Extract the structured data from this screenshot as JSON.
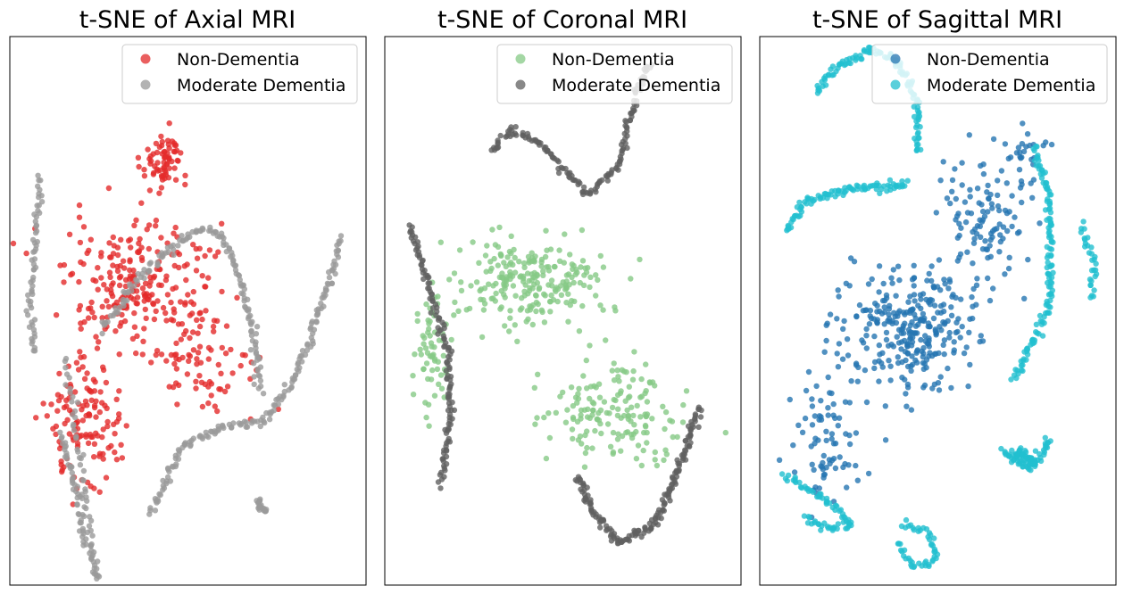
{
  "figure": {
    "background": "#ffffff"
  },
  "chart_data": [
    {
      "type": "scatter",
      "title": "t-SNE of Axial MRI",
      "xlabel": "",
      "ylabel": "",
      "grid": false,
      "ticks": false,
      "legend_position": "top-right",
      "series": [
        {
          "name": "Non-Dementia",
          "color": "#e32a2a",
          "kind": "cloud",
          "clusters": [
            {
              "center": [
                -5,
                24
              ],
              "spread": [
                4,
                5
              ],
              "count": 70
            },
            {
              "center": [
                -9,
                3
              ],
              "spread": [
                13,
                10
              ],
              "count": 250
            },
            {
              "center": [
                -20,
                -18
              ],
              "spread": [
                7,
                10
              ],
              "count": 130
            },
            {
              "center": [
                3,
                -10
              ],
              "spread": [
                10,
                6
              ],
              "count": 60
            }
          ]
        },
        {
          "name": "Moderate Dementia",
          "color": "#9a9a9a",
          "kind": "curves",
          "curves": [
            {
              "points": [
                [
                  -29,
                  22
                ],
                [
                  -30,
                  12
                ],
                [
                  -31,
                  0
                ],
                [
                  -30,
                  -7
                ]
              ],
              "count": 60
            },
            {
              "points": [
                [
                  -25,
                  -20
                ],
                [
                  -22,
                  -30
                ],
                [
                  -20,
                  -38
                ],
                [
                  -18,
                  -44
                ]
              ],
              "count": 60
            },
            {
              "points": [
                [
                  -24,
                  -8
                ],
                [
                  -22,
                  -20
                ],
                [
                  -20,
                  -32
                ],
                [
                  -18,
                  -44
                ]
              ],
              "count": 50
            },
            {
              "points": [
                [
                  -17,
                  -3
                ],
                [
                  -9,
                  6
                ],
                [
                  1,
                  13
                ],
                [
                  6,
                  13
                ],
                [
                  10,
                  6
                ],
                [
                  13,
                  -4
                ],
                [
                  14,
                  -13
                ]
              ],
              "count": 150
            },
            {
              "points": [
                [
                  -7,
                  -33
                ],
                [
                  -1,
                  -22
                ],
                [
                  8,
                  -19
                ],
                [
                  15,
                  -18
                ],
                [
                  21,
                  -11
                ],
                [
                  28,
                  5
                ],
                [
                  30,
                  12
                ]
              ],
              "count": 170
            },
            {
              "points": [
                [
                  14,
                  -31
                ],
                [
                  15,
                  -33
                ]
              ],
              "count": 20
            }
          ]
        }
      ],
      "xlim": [
        -35,
        35
      ],
      "ylim": [
        -45,
        45
      ]
    },
    {
      "type": "scatter",
      "title": "t-SNE of Coronal MRI",
      "xlabel": "",
      "ylabel": "",
      "grid": false,
      "ticks": false,
      "legend_position": "top-right",
      "series": [
        {
          "name": "Non-Dementia",
          "color": "#86c986",
          "kind": "cloud",
          "clusters": [
            {
              "center": [
                -7,
                5
              ],
              "spread": [
                13,
                7
              ],
              "count": 230
            },
            {
              "center": [
                10,
                -16
              ],
              "spread": [
                12,
                8
              ],
              "count": 160
            },
            {
              "center": [
                -26,
                -8
              ],
              "spread": [
                3,
                11
              ],
              "count": 60
            }
          ]
        },
        {
          "name": "Moderate Dementia",
          "color": "#606060",
          "kind": "curves",
          "curves": [
            {
              "points": [
                [
                  -30,
                  14
                ],
                [
                  -26,
                  3
                ],
                [
                  -23,
                  -5
                ],
                [
                  -22,
                  -17
                ],
                [
                  -24,
                  -28
                ]
              ],
              "count": 130
            },
            {
              "points": [
                [
                  -14,
                  26
                ],
                [
                  -10,
                  30
                ],
                [
                  -4,
                  27
                ],
                [
                  5,
                  19
                ],
                [
                  11,
                  24
                ],
                [
                  14,
                  34
                ],
                [
                  17,
                  41
                ]
              ],
              "count": 150
            },
            {
              "points": [
                [
                  3,
                  -27
                ],
                [
                  6,
                  -33
                ],
                [
                  11,
                  -38
                ],
                [
                  18,
                  -35
                ],
                [
                  24,
                  -23
                ],
                [
                  27,
                  -16
                ]
              ],
              "count": 170
            }
          ]
        }
      ],
      "xlim": [
        -35,
        35
      ],
      "ylim": [
        -45,
        45
      ]
    },
    {
      "type": "scatter",
      "title": "t-SNE of Sagittal MRI",
      "xlabel": "",
      "ylabel": "",
      "grid": false,
      "ticks": false,
      "legend_position": "top-right",
      "series": [
        {
          "name": "Non-Dementia",
          "color": "#2675b2",
          "kind": "cloud",
          "clusters": [
            {
              "center": [
                -5,
                -3
              ],
              "spread": [
                12,
                9
              ],
              "count": 300
            },
            {
              "center": [
                -22,
                -21
              ],
              "spread": [
                7,
                10
              ],
              "count": 80
            },
            {
              "center": [
                10,
                16
              ],
              "spread": [
                9,
                9
              ],
              "count": 110
            },
            {
              "center": [
                18,
                26
              ],
              "spread": [
                4,
                4
              ],
              "count": 20
            }
          ]
        },
        {
          "name": "Moderate Dementia",
          "color": "#22bfcf",
          "kind": "curves",
          "curves": [
            {
              "points": [
                [
                  -24,
                  36
                ],
                [
                  -20,
                  40
                ],
                [
                  -13,
                  43
                ],
                [
                  -8,
                  41
                ],
                [
                  -4,
                  34
                ],
                [
                  -4,
                  26
                ]
              ],
              "count": 110
            },
            {
              "points": [
                [
                  -30,
                  13
                ],
                [
                  -26,
                  18
                ],
                [
                  -18,
                  20
                ],
                [
                  -10,
                  20
                ],
                [
                  -6,
                  21
                ]
              ],
              "count": 90
            },
            {
              "points": [
                [
                  19,
                  27
                ],
                [
                  22,
                  18
                ],
                [
                  22,
                  10
                ],
                [
                  22,
                  1
                ],
                [
                  18,
                  -6
                ],
                [
                  15,
                  -11
                ]
              ],
              "count": 130
            },
            {
              "points": [
                [
                  28,
                  14
                ],
                [
                  31,
                  8
                ],
                [
                  30,
                  2
                ]
              ],
              "count": 30
            },
            {
              "points": [
                [
                  22,
                  -21
                ],
                [
                  18,
                  -26
                ],
                [
                  13,
                  -23
                ]
              ],
              "count": 50
            },
            {
              "points": [
                [
                  15,
                  -23
                ],
                [
                  19,
                  -25
                ]
              ],
              "count": 40
            },
            {
              "points": [
                [
                  -30,
                  -27
                ],
                [
                  -22,
                  -31
                ],
                [
                  -17,
                  -35
                ],
                [
                  -21,
                  -36
                ],
                [
                  -26,
                  -34
                ]
              ],
              "count": 70
            },
            {
              "points": [
                [
                  -8,
                  -38
                ],
                [
                  -5,
                  -42
                ],
                [
                  0,
                  -41
                ],
                [
                  -2,
                  -36
                ],
                [
                  -7,
                  -35
                ]
              ],
              "count": 50
            }
          ]
        }
      ],
      "xlim": [
        -35,
        35
      ],
      "ylim": [
        -45,
        45
      ]
    }
  ]
}
